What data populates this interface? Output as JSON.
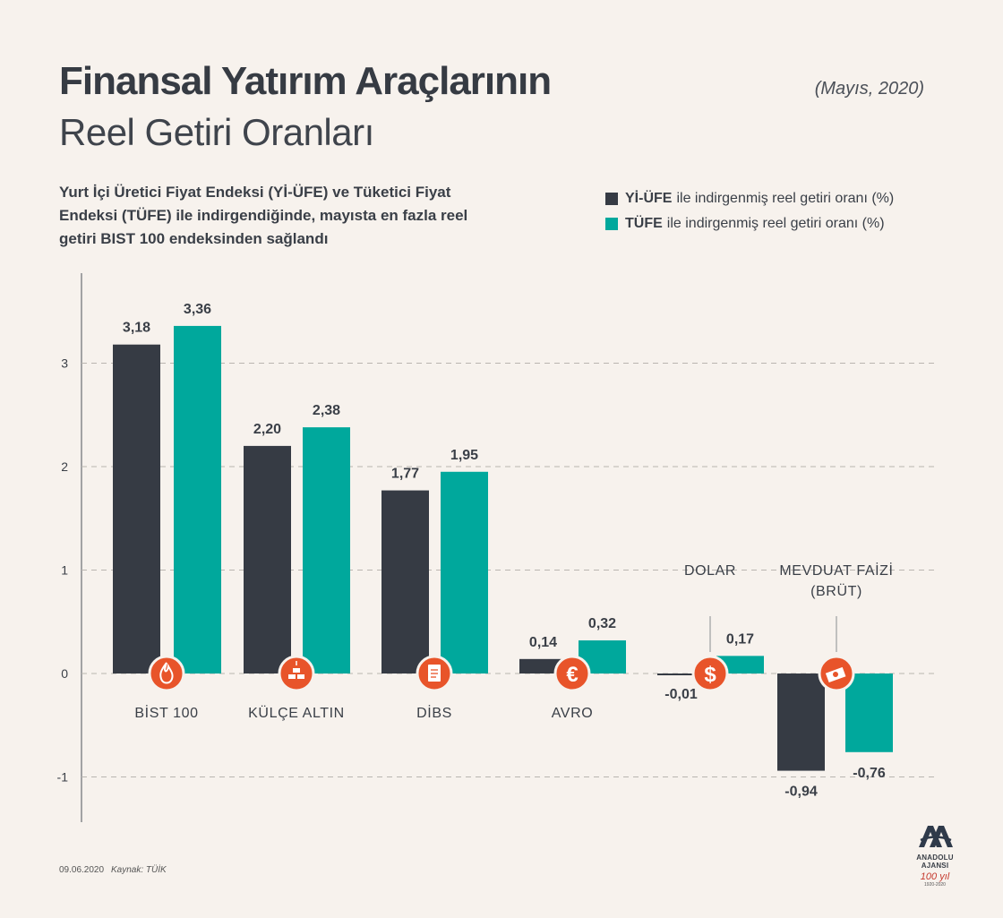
{
  "header": {
    "title_bold": "Finansal Yatırım Araçlarının",
    "title_light": "Reel Getiri Oranları",
    "date": "(Mayıs, 2020)",
    "subtitle": "Yurt İçi Üretici Fiyat Endeksi (Yİ-ÜFE) ve Tüketici Fiyat Endeksi (TÜFE) ile indirgendiğinde, mayısta en fazla reel getiri BIST 100 endeksinden sağlandı"
  },
  "legend": {
    "items": [
      {
        "key": "Yİ-ÜFE",
        "text": "ile indirgenmiş reel getiri oranı (%)",
        "color": "#363b44"
      },
      {
        "key": "TÜFE",
        "text": "ile indirgenmiş reel getiri oranı (%)",
        "color": "#00a89c"
      }
    ]
  },
  "chart_data": {
    "type": "bar",
    "categories": [
      "BİST 100",
      "KÜLÇE ALTIN",
      "DİBS",
      "AVRO",
      "DOLAR",
      "MEVDUAT FAİZİ (BRÜT)"
    ],
    "category_label_lines": [
      [
        "BİST 100"
      ],
      [
        "KÜLÇE ALTIN"
      ],
      [
        "DİBS"
      ],
      [
        "AVRO"
      ],
      [
        "DOLAR"
      ],
      [
        "MEVDUAT FAİZİ",
        "(BRÜT)"
      ]
    ],
    "series": [
      {
        "name": "Yİ-ÜFE",
        "values": [
          3.18,
          2.2,
          1.77,
          0.14,
          -0.01,
          -0.94
        ],
        "labels": [
          "3,18",
          "2,20",
          "1,77",
          "0,14",
          "-0,01",
          "-0,94"
        ],
        "color": "#363b44"
      },
      {
        "name": "TÜFE",
        "values": [
          3.36,
          2.38,
          1.95,
          0.32,
          0.17,
          -0.76
        ],
        "labels": [
          "3,36",
          "2,38",
          "1,95",
          "0,32",
          "0,17",
          "-0,76"
        ],
        "color": "#00a89c"
      }
    ],
    "icons": [
      "fire-icon",
      "gold-bars-icon",
      "document-icon",
      "euro-icon",
      "dollar-icon",
      "money-stack-icon"
    ],
    "icon_color": "#e8542a",
    "yticks": [
      -1,
      0,
      1,
      2,
      3
    ],
    "ylim": [
      -1.45,
      3.9
    ],
    "grid": true
  },
  "footer": {
    "date": "09.06.2020",
    "source": "Kaynak: TÜİK",
    "logo_name": "ANADOLU AJANSI",
    "logo_cent": "100 yıl",
    "logo_years": "1920-2020"
  }
}
